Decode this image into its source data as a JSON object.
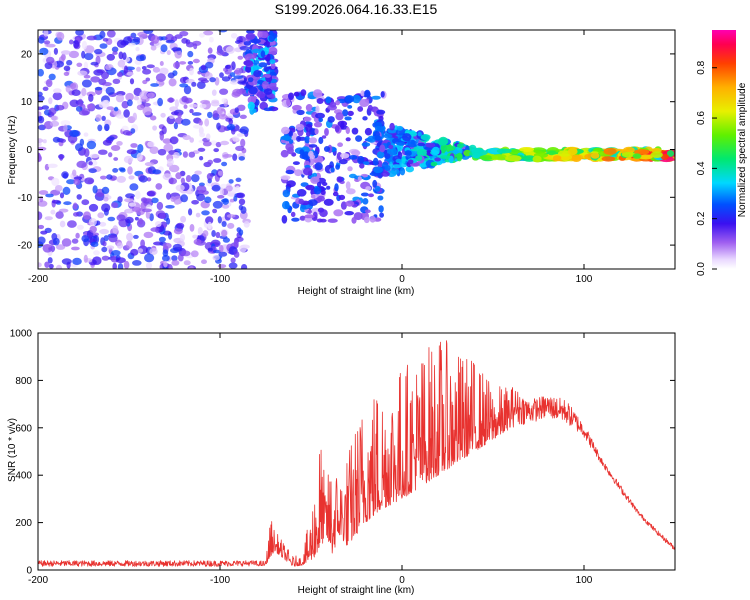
{
  "title": "S199.2026.064.16.33.E15",
  "chart_data": [
    {
      "type": "heatmap",
      "id": "spectrogram",
      "xlabel": "Height of straight line (km)",
      "ylabel": "Frequency (Hz)",
      "xlim": [
        -200,
        150
      ],
      "ylim": [
        -25,
        25
      ],
      "xticks": [
        -200,
        -100,
        0,
        100
      ],
      "yticks": [
        -20,
        -10,
        0,
        10,
        20
      ],
      "xtick_labels": [
        "-200",
        "-100",
        "0",
        "100"
      ],
      "ytick_labels": [
        "-20",
        "-10",
        "0",
        "10",
        "20"
      ],
      "colorbar": {
        "label": "Normalized spectral amplitude",
        "range": [
          0,
          0.95
        ],
        "ticks": [
          0.0,
          0.2,
          0.4,
          0.6,
          0.8
        ],
        "tick_labels": [
          "0.0",
          "0.2",
          "0.4",
          "0.6",
          "0.8"
        ]
      },
      "description_regions": [
        {
          "x_range": [
            -200,
            -85
          ],
          "freq_range": [
            -25,
            25
          ],
          "amplitude": [
            0.02,
            0.25
          ],
          "pattern": "broad scattered noise"
        },
        {
          "x_range": [
            -85,
            -70
          ],
          "freq_range": [
            8,
            25
          ],
          "amplitude": [
            0.1,
            0.35
          ],
          "pattern": "dense cluster"
        },
        {
          "x_range": [
            -65,
            -10
          ],
          "freq_range": [
            -15,
            12
          ],
          "amplitude": [
            0.05,
            0.3
          ],
          "pattern": "scattered blobs"
        },
        {
          "x_range": [
            -15,
            40
          ],
          "freq_range": [
            -6,
            6
          ],
          "amplitude": [
            0.1,
            0.55
          ],
          "pattern": "converging band"
        },
        {
          "x_range": [
            40,
            150
          ],
          "freq_range": [
            -2,
            0
          ],
          "amplitude": [
            0.3,
            0.95
          ],
          "pattern": "narrow strong line"
        }
      ]
    },
    {
      "type": "line",
      "id": "snr",
      "xlabel": "Height of straight line (km)",
      "ylabel": "SNR (10 * v/v)",
      "xlim": [
        -200,
        150
      ],
      "ylim": [
        0,
        1000
      ],
      "xticks": [
        -200,
        -100,
        0,
        100
      ],
      "yticks": [
        0,
        200,
        400,
        600,
        800,
        1000
      ],
      "xtick_labels": [
        "-200",
        "-100",
        "0",
        "100"
      ],
      "ytick_labels": [
        "0",
        "200",
        "400",
        "600",
        "800",
        "1000"
      ],
      "color": "#e8322f",
      "envelope": {
        "x": [
          -200,
          -150,
          -100,
          -75,
          -72,
          -70,
          -60,
          -55,
          -50,
          -45,
          -42,
          -38,
          -35,
          -30,
          -20,
          -10,
          0,
          10,
          20,
          30,
          40,
          50,
          60,
          70,
          80,
          90,
          100,
          110,
          120,
          130,
          140,
          150
        ],
        "baseline": [
          15,
          15,
          15,
          18,
          60,
          80,
          15,
          20,
          40,
          80,
          150,
          60,
          150,
          100,
          200,
          260,
          300,
          350,
          400,
          450,
          500,
          550,
          600,
          620,
          640,
          620,
          560,
          440,
          330,
          230,
          150,
          80
        ],
        "peak": [
          40,
          40,
          40,
          40,
          230,
          170,
          60,
          60,
          250,
          600,
          350,
          530,
          400,
          500,
          770,
          820,
          880,
          930,
          1000,
          930,
          900,
          780,
          780,
          720,
          740,
          720,
          620,
          470,
          360,
          250,
          170,
          100
        ]
      }
    }
  ]
}
